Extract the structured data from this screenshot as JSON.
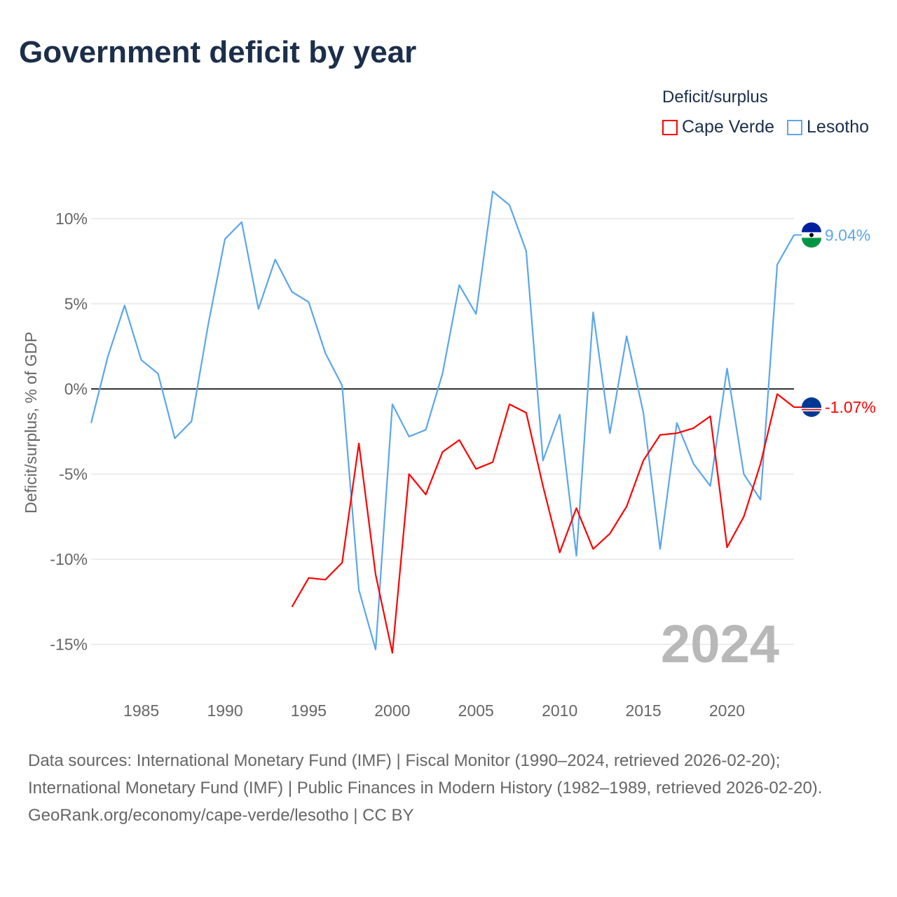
{
  "title": "Government deficit by year",
  "legend": {
    "title": "Deficit/surplus",
    "items": [
      "Cape Verde",
      "Lesotho"
    ]
  },
  "colors": {
    "cape_verde": "#ff0000",
    "lesotho": "#5ba6ec"
  },
  "year_watermark": "2024",
  "footer": {
    "sources": "Data sources: International Monetary Fund (IMF) | Fiscal Monitor (1990–2024, retrieved 2026-02-20); International Monetary Fund (IMF) | Public Finances in Modern History (1982–1989, retrieved 2026-02-20).",
    "credit": "GeoRank.org/economy/cape-verde/lesotho | CC BY"
  },
  "chart_data": {
    "type": "line",
    "title": "Government deficit by year",
    "xlabel": "",
    "ylabel": "Deficit/surplus, % of GDP",
    "xlim": [
      1982,
      2024
    ],
    "ylim": [
      -17,
      13
    ],
    "xticks": [
      1985,
      1990,
      1995,
      2000,
      2005,
      2010,
      2015,
      2020
    ],
    "yticks": [
      10,
      5,
      0,
      -5,
      -10,
      -15
    ],
    "ytick_labels": [
      "10%",
      "5%",
      "0%",
      "-5%",
      "-10%",
      "-15%"
    ],
    "legend_position": "top-right",
    "series": [
      {
        "name": "Lesotho",
        "end_label": "9.04%",
        "start_year": 1982,
        "values": [
          -2.0,
          1.9,
          4.9,
          1.7,
          0.9,
          -2.9,
          -1.9,
          3.8,
          8.8,
          9.8,
          4.7,
          7.6,
          5.7,
          5.1,
          2.1,
          0.2,
          -11.8,
          -15.3,
          -0.9,
          -2.8,
          -2.4,
          0.9,
          6.1,
          4.4,
          11.6,
          10.8,
          8.1,
          -4.2,
          -1.5,
          -9.8,
          4.5,
          -2.6,
          3.1,
          -1.4,
          -9.4,
          -2.0,
          -4.4,
          -5.7,
          1.2,
          -5.0,
          -6.5,
          7.3,
          9.04
        ]
      },
      {
        "name": "Cape Verde",
        "end_label": "-1.07%",
        "start_year": 1994,
        "values": [
          -12.8,
          -11.1,
          -11.2,
          -10.2,
          -3.2,
          -10.9,
          -15.5,
          -5.0,
          -6.2,
          -3.7,
          -3.0,
          -4.7,
          -4.3,
          -0.9,
          -1.4,
          -5.7,
          -9.6,
          -7.0,
          -9.4,
          -8.5,
          -6.9,
          -4.2,
          -2.7,
          -2.6,
          -2.3,
          -1.6,
          -9.3,
          -7.5,
          -4.4,
          -0.3,
          -1.07
        ]
      }
    ]
  }
}
